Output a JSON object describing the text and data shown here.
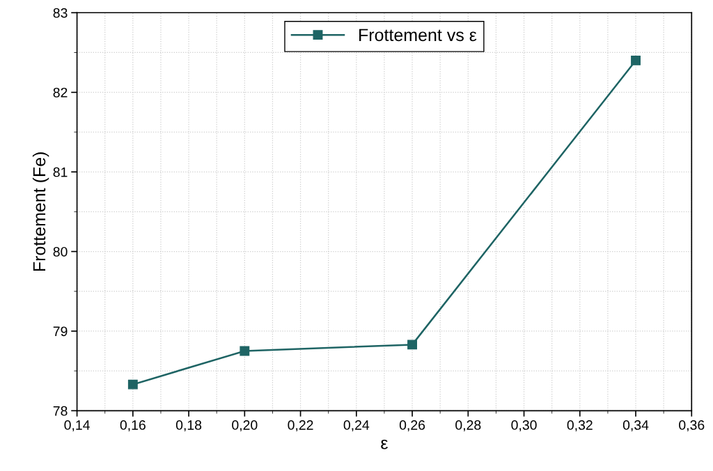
{
  "chart_data": {
    "type": "line",
    "xlabel": "ε",
    "ylabel": "Frottement (Fe)",
    "x": [
      0.16,
      0.2,
      0.26,
      0.34
    ],
    "series": [
      {
        "name": "Frottement vs ε",
        "color": "#1e6464",
        "values": [
          78.33,
          78.75,
          78.83,
          82.4
        ]
      }
    ],
    "xlim": [
      0.14,
      0.36
    ],
    "xticks": [
      {
        "value": 0.14,
        "label": "0,14"
      },
      {
        "value": 0.16,
        "label": "0,16"
      },
      {
        "value": 0.18,
        "label": "0,18"
      },
      {
        "value": 0.2,
        "label": "0,20"
      },
      {
        "value": 0.22,
        "label": "0,22"
      },
      {
        "value": 0.24,
        "label": "0,24"
      },
      {
        "value": 0.26,
        "label": "0,26"
      },
      {
        "value": 0.28,
        "label": "0,28"
      },
      {
        "value": 0.3,
        "label": "0,30"
      },
      {
        "value": 0.32,
        "label": "0,32"
      },
      {
        "value": 0.34,
        "label": "0,34"
      },
      {
        "value": 0.36,
        "label": "0,36"
      }
    ],
    "ylim": [
      78,
      83
    ],
    "yticks": [
      78,
      79,
      80,
      81,
      82,
      83
    ],
    "grid": true,
    "legend": "top",
    "marker": "square",
    "line_style": "solid"
  }
}
